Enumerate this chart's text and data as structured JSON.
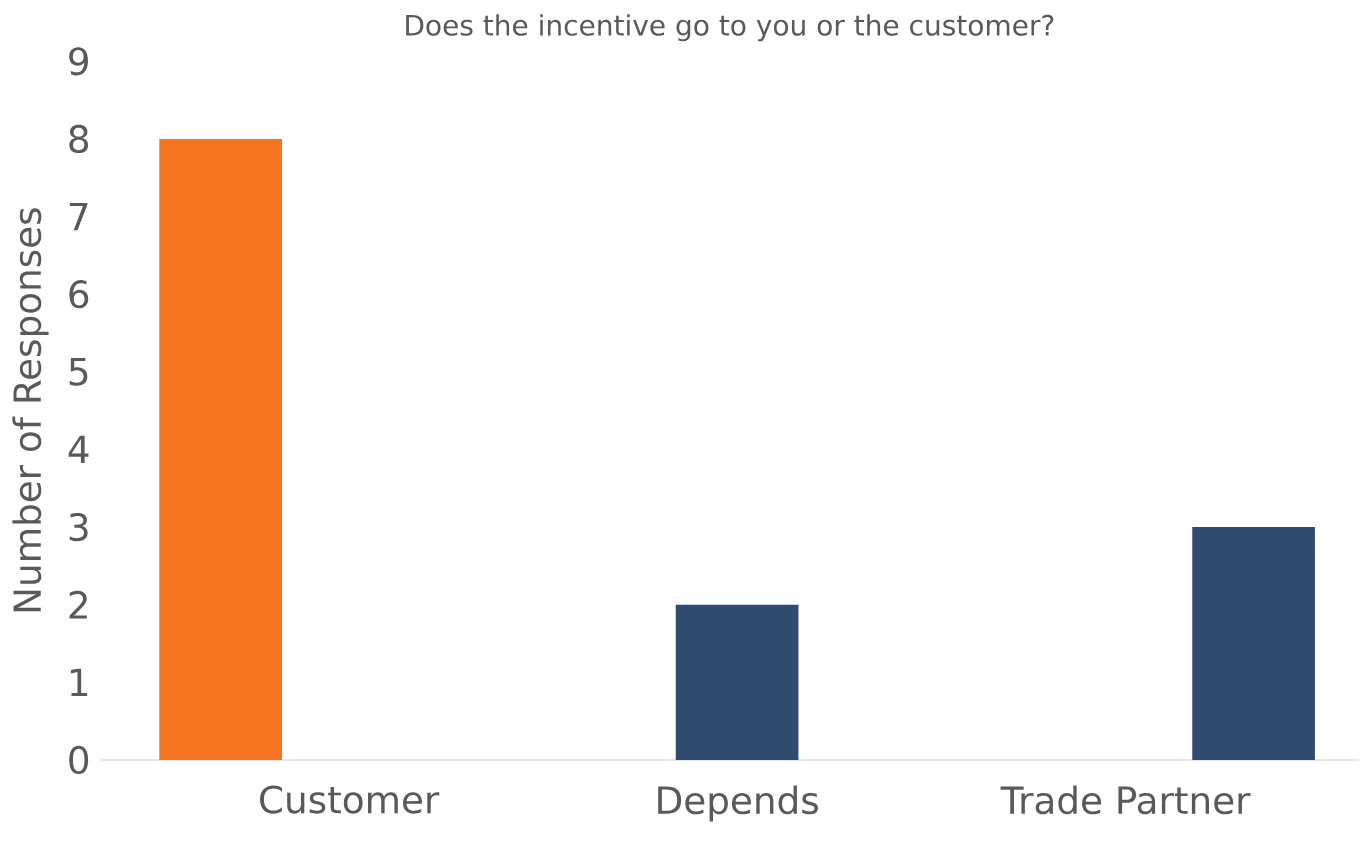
{
  "chart_data": {
    "type": "bar",
    "title": "Does the incentive go to you or the customer?",
    "ylabel": "Number of Responses",
    "categories": [
      "Customer",
      "Depends",
      "Trade Partner"
    ],
    "values": [
      8,
      2,
      3
    ],
    "colors": [
      "#f47421",
      "#2f4b6e",
      "#2f4b6e"
    ],
    "ylim": [
      0,
      9
    ],
    "yticks": [
      0,
      1,
      2,
      3,
      4,
      5,
      6,
      7,
      8,
      9
    ],
    "grid": false
  }
}
